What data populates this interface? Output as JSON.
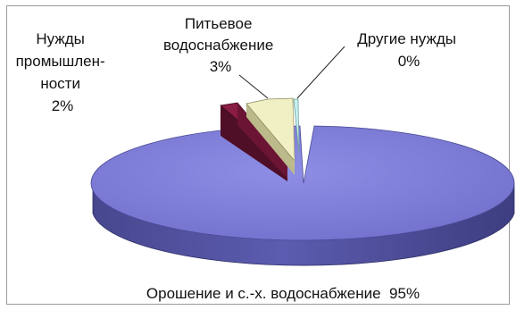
{
  "chart_data": {
    "type": "pie",
    "title": "",
    "style": "3d-exploded",
    "slices": [
      {
        "label": "Орошение и с.-х. водоснабжение",
        "value": 95,
        "display": "95%",
        "color": "#7b7bd6"
      },
      {
        "label": "Нужды промышленности",
        "value": 2,
        "display": "2%",
        "color": "#8a1c44"
      },
      {
        "label": "Питьевое водоснабжение",
        "value": 3,
        "display": "3%",
        "color": "#f1efc4"
      },
      {
        "label": "Другие нужды",
        "value": 0,
        "display": "0%",
        "color": "#c6f0ee"
      }
    ],
    "label_lines": {
      "irrigation": "Орошение и с.-х. водоснабжение  95%",
      "industry": [
        "Нужды",
        "промышлен-",
        "ности",
        "2%"
      ],
      "drinking": [
        "Питьевое",
        "водоснабжение",
        "3%"
      ],
      "other": [
        "Другие нужды",
        "0%"
      ]
    }
  }
}
